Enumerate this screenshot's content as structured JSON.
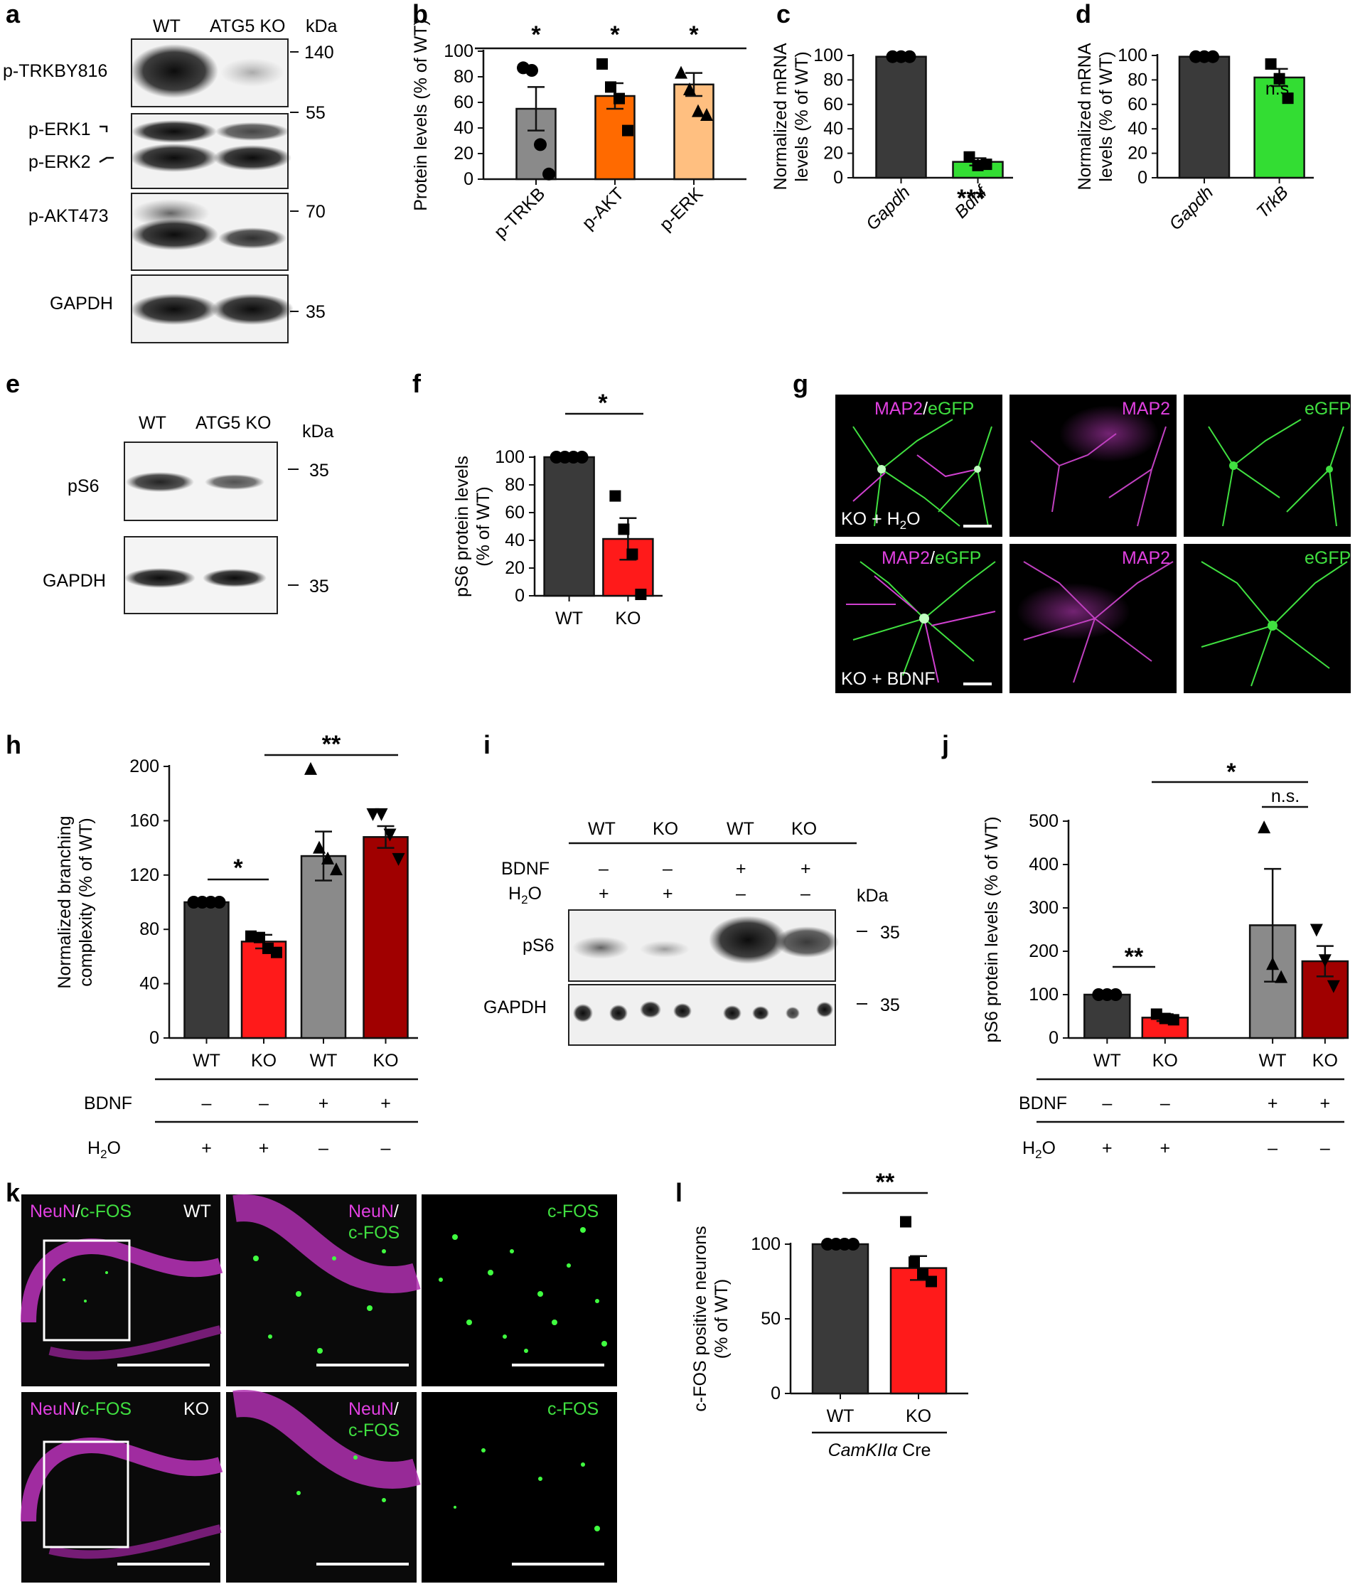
{
  "colors": {
    "dark": "#3a3a3a",
    "red": "#ff1a1a",
    "orange": "#ff6a00",
    "peach": "#ffbf80",
    "green": "#33dd33",
    "gray": "#8a8a8a",
    "darkred": "#a00000",
    "magenta": "#e040e0",
    "egfp": "#40e040"
  },
  "blots": {
    "a": {
      "lanes": [
        "WT",
        "ATG5 KO"
      ],
      "unit": "kDa",
      "rows": [
        "p-TRKBY816",
        "p-ERK1",
        "p-ERK2",
        "p-AKT473",
        "GAPDH"
      ],
      "markers": [
        "140",
        "55",
        "70",
        "35"
      ]
    },
    "e": {
      "lanes": [
        "WT",
        "ATG5 KO"
      ],
      "unit": "kDa",
      "rows": [
        "pS6",
        "GAPDH"
      ],
      "markers": [
        "35",
        "35"
      ]
    },
    "i": {
      "lanes": [
        "WT",
        "KO",
        "WT",
        "KO"
      ],
      "bdnf_label": "BDNF",
      "h2o_label": "H2O",
      "bdnf": [
        "–",
        "–",
        "+",
        "+"
      ],
      "h2o": [
        "+",
        "+",
        "–",
        "–"
      ],
      "unit": "kDa",
      "rows": [
        "pS6",
        "GAPDH"
      ],
      "markers": [
        "35",
        "35"
      ]
    }
  },
  "images": {
    "g": {
      "row1": [
        "MAP2/eGFP",
        "MAP2",
        "eGFP"
      ],
      "row2": [
        "MAP2/eGFP",
        "MAP2",
        "eGFP"
      ],
      "cond1": "KO + H2O",
      "cond2": "KO + BDNF"
    },
    "k": {
      "row1": [
        "NeuN/c-FOS",
        "NeuN/c-FOS",
        "c-FOS"
      ],
      "row2": [
        "NeuN/c-FOS",
        "NeuN/c-FOS",
        "c-FOS"
      ],
      "g1": "WT",
      "g2": "KO"
    }
  },
  "chart_data": [
    {
      "id": "b",
      "type": "bar",
      "categories": [
        "p-TRKB",
        "p-AKT",
        "p-ERK"
      ],
      "values": [
        55,
        65,
        74
      ],
      "errors": [
        17,
        10,
        9
      ],
      "points": [
        [
          87,
          85,
          27,
          4
        ],
        [
          90,
          72,
          63,
          38
        ],
        [
          83,
          70,
          53,
          50
        ]
      ],
      "markers": [
        "circle",
        "square",
        "triangle"
      ],
      "ylabel": "Protein levels (% of WT)",
      "ylim": [
        0,
        100
      ],
      "yticks": [
        0,
        20,
        40,
        60,
        80,
        100
      ],
      "annotations": [
        "*",
        "*",
        "*"
      ],
      "colors": [
        "#8a8a8a",
        "#ff6a00",
        "#ffbf80"
      ]
    },
    {
      "id": "c",
      "type": "bar",
      "categories": [
        "Gapdh",
        "Bdnf"
      ],
      "values": [
        99,
        13
      ],
      "errors": [
        0,
        3
      ],
      "points": [
        [
          99,
          99,
          99
        ],
        [
          17,
          10,
          11
        ]
      ],
      "ylabel": "Normalized mRNA levels (% of WT)",
      "ylim": [
        0,
        100
      ],
      "yticks": [
        0,
        20,
        40,
        60,
        80,
        100
      ],
      "annotations": [
        "***"
      ],
      "colors": [
        "#3a3a3a",
        "#33dd33"
      ]
    },
    {
      "id": "d",
      "type": "bar",
      "categories": [
        "Gapdh",
        "TrkB"
      ],
      "values": [
        99,
        82
      ],
      "errors": [
        0,
        7
      ],
      "points": [
        [
          99,
          99,
          99
        ],
        [
          93,
          81,
          65
        ]
      ],
      "ylabel": "Normalized mRNA levels (% of WT)",
      "ylim": [
        0,
        100
      ],
      "yticks": [
        0,
        20,
        40,
        60,
        80,
        100
      ],
      "annotations": [
        "n.s."
      ],
      "colors": [
        "#3a3a3a",
        "#33dd33"
      ]
    },
    {
      "id": "f",
      "type": "bar",
      "categories": [
        "WT",
        "KO"
      ],
      "values": [
        100,
        41
      ],
      "errors": [
        0,
        15
      ],
      "points": [
        [
          100,
          100,
          100,
          100
        ],
        [
          72,
          48,
          30,
          1
        ]
      ],
      "ylabel": "pS6 protein levels (% of WT)",
      "ylim": [
        0,
        100
      ],
      "yticks": [
        0,
        20,
        40,
        60,
        80,
        100
      ],
      "annotations": [
        "*"
      ],
      "colors": [
        "#3a3a3a",
        "#ff1a1a"
      ]
    },
    {
      "id": "h",
      "type": "bar",
      "categories": [
        "WT",
        "KO",
        "WT",
        "KO"
      ],
      "values": [
        100,
        71,
        134,
        148
      ],
      "errors": [
        0,
        5,
        18,
        8
      ],
      "points": [
        [
          100,
          100,
          100,
          100
        ],
        [
          75,
          74,
          66,
          63
        ],
        [
          198,
          140,
          132,
          124
        ],
        [
          165,
          165,
          150,
          132
        ]
      ],
      "ylabel": "Normalized branching complexity (% of WT)",
      "ylim": [
        0,
        200
      ],
      "yticks": [
        0,
        40,
        80,
        120,
        160,
        200
      ],
      "annotations": [
        "*",
        "**"
      ],
      "bdnf": [
        "–",
        "–",
        "+",
        "+"
      ],
      "h2o": [
        "+",
        "+",
        "–",
        "–"
      ],
      "colors": [
        "#3a3a3a",
        "#ff1a1a",
        "#8a8a8a",
        "#a00000"
      ]
    },
    {
      "id": "j",
      "type": "bar",
      "categories": [
        "WT",
        "KO",
        "WT",
        "KO"
      ],
      "values": [
        100,
        47,
        260,
        177
      ],
      "errors": [
        0,
        8,
        130,
        35
      ],
      "points": [
        [
          100,
          100,
          100
        ],
        [
          55,
          45,
          42
        ],
        [
          485,
          170,
          140
        ],
        [
          250,
          180,
          120
        ]
      ],
      "ylabel": "pS6 protein levels (% of WT)",
      "ylim": [
        0,
        500
      ],
      "yticks": [
        0,
        100,
        200,
        300,
        400,
        500
      ],
      "annotations": [
        "*",
        "n.s.",
        "**"
      ],
      "bdnf": [
        "–",
        "–",
        "+",
        "+"
      ],
      "h2o": [
        "+",
        "+",
        "–",
        "–"
      ],
      "colors": [
        "#3a3a3a",
        "#ff1a1a",
        "#8a8a8a",
        "#a00000"
      ]
    },
    {
      "id": "l",
      "type": "bar",
      "categories": [
        "WT",
        "KO"
      ],
      "values": [
        100,
        84
      ],
      "errors": [
        0,
        8
      ],
      "points": [
        [
          100,
          100,
          100,
          100
        ],
        [
          115,
          88,
          80,
          75
        ]
      ],
      "ylabel": "c-FOS positive neurons (% of WT)",
      "xlabel": "CamKIIα Cre",
      "ylim": [
        0,
        100
      ],
      "yticks": [
        0,
        50,
        100
      ],
      "annotations": [
        "**"
      ],
      "colors": [
        "#3a3a3a",
        "#ff1a1a"
      ]
    }
  ]
}
